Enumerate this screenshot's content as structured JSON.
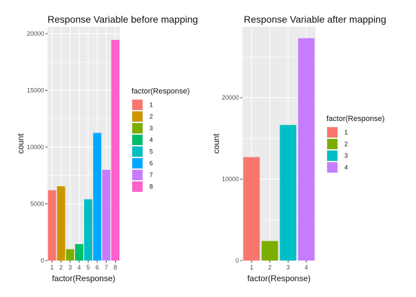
{
  "chart_data": [
    {
      "type": "bar",
      "title": "Response Variable before mapping",
      "xlabel": "factor(Response)",
      "ylabel": "count",
      "categories": [
        "1",
        "2",
        "3",
        "4",
        "5",
        "6",
        "7",
        "8"
      ],
      "values": [
        6200,
        6550,
        1000,
        1450,
        5400,
        11250,
        8000,
        19450
      ],
      "ylim": [
        0,
        20600
      ],
      "yticks": [
        0,
        5000,
        10000,
        15000,
        20000
      ],
      "ytick_labels": [
        "0",
        "5000",
        "10000",
        "15000",
        "20000"
      ],
      "grid": true,
      "legend": {
        "title": "factor(Response)",
        "placement": "right",
        "items": [
          {
            "label": "1",
            "color": "#F8766D"
          },
          {
            "label": "2",
            "color": "#CD9600"
          },
          {
            "label": "3",
            "color": "#7CAE00"
          },
          {
            "label": "4",
            "color": "#00BE67"
          },
          {
            "label": "5",
            "color": "#00BFC4"
          },
          {
            "label": "6",
            "color": "#00A9FF"
          },
          {
            "label": "7",
            "color": "#C77CFF"
          },
          {
            "label": "8",
            "color": "#FF61CC"
          }
        ]
      }
    },
    {
      "type": "bar",
      "title": "Response Variable after mapping",
      "xlabel": "factor(Response)",
      "ylabel": "count",
      "categories": [
        "1",
        "2",
        "3",
        "4"
      ],
      "values": [
        12700,
        2400,
        16650,
        27300
      ],
      "ylim": [
        0,
        28700
      ],
      "yticks": [
        0,
        10000,
        20000
      ],
      "ytick_labels": [
        "0",
        "10000",
        "20000"
      ],
      "grid": true,
      "legend": {
        "title": "factor(Response)",
        "placement": "right",
        "items": [
          {
            "label": "1",
            "color": "#F8766D"
          },
          {
            "label": "2",
            "color": "#7CAE00"
          },
          {
            "label": "3",
            "color": "#00BFC4"
          },
          {
            "label": "4",
            "color": "#C77CFF"
          }
        ]
      }
    }
  ]
}
